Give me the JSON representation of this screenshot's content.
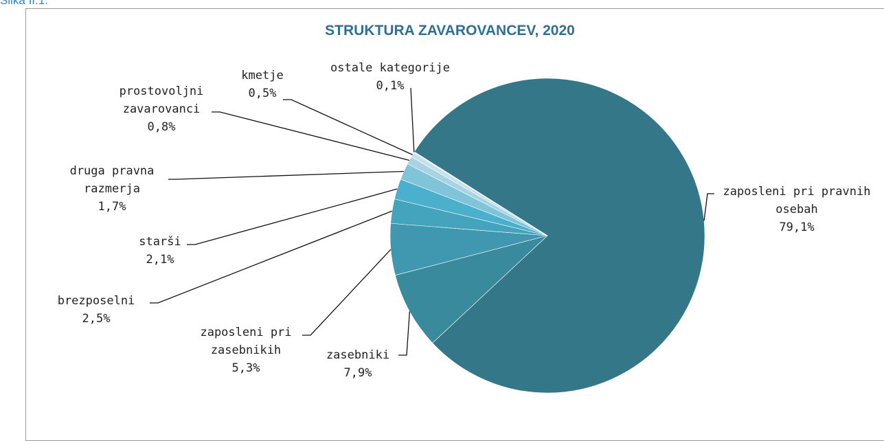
{
  "figure_label": "Slika II.1:",
  "chart_data": {
    "type": "pie",
    "title": "STRUKTURA ZAVAROVANCEV, 2020",
    "categories": [
      "zaposleni pri pravnih osebah",
      "zasebniki",
      "zaposleni pri zasebnikih",
      "brezposelni",
      "starši",
      "druga pravna razmerja",
      "prostovoljni zavarovanci",
      "kmetje",
      "ostale kategorije"
    ],
    "values": [
      79.1,
      7.9,
      5.3,
      2.5,
      2.1,
      1.7,
      0.8,
      0.5,
      0.1
    ],
    "value_labels": [
      "79,1%",
      "7,9%",
      "5,3%",
      "2,5%",
      "2,1%",
      "1,7%",
      "0,8%",
      "0,5%",
      "0,1%"
    ],
    "colors": [
      "#347788",
      "#3a8a9e",
      "#3f98b0",
      "#44a3bd",
      "#4bb0cb",
      "#7fc4d8",
      "#a7d3e3",
      "#c5e2ec",
      "#e0eff5"
    ]
  }
}
